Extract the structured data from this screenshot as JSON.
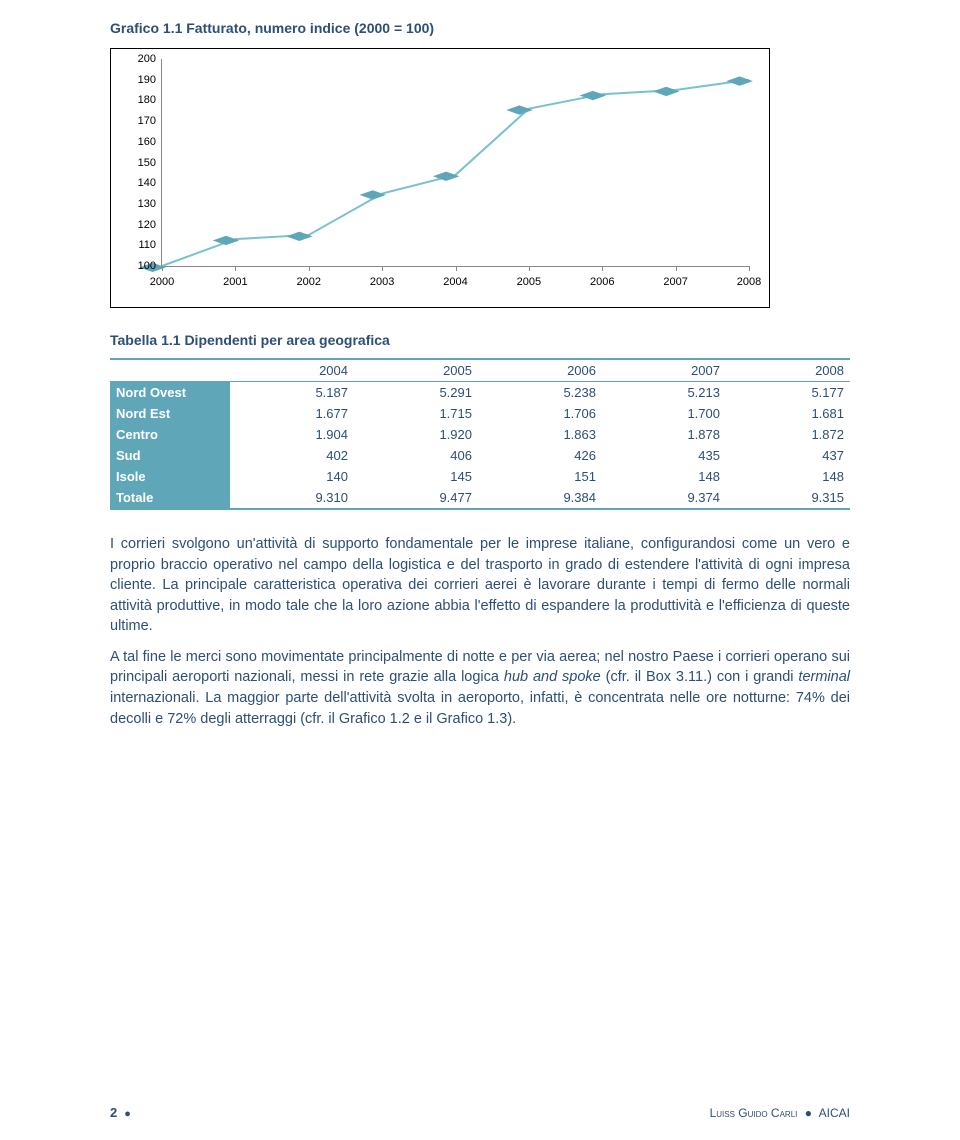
{
  "chart": {
    "title": "Grafico 1.1 Fatturato, numero indice (2000 = 100)",
    "type": "line",
    "x_labels": [
      "2000",
      "2001",
      "2002",
      "2003",
      "2004",
      "2005",
      "2006",
      "2007",
      "2008"
    ],
    "y_min": 100,
    "y_max": 200,
    "y_step": 10,
    "y_labels": [
      "100",
      "110",
      "120",
      "130",
      "140",
      "150",
      "160",
      "170",
      "180",
      "190",
      "200"
    ],
    "values": [
      100,
      113,
      115,
      135,
      144,
      176,
      183,
      185,
      190
    ],
    "line_color": "#79c1ce",
    "line_width": 4,
    "marker_color": "#5fa7b8",
    "marker_size": 8,
    "background_color": "#ffffff",
    "axis_color": "#888888",
    "text_color": "#000000"
  },
  "table": {
    "title": "Tabella 1.1 Dipendenti per area geografica",
    "columns": [
      "",
      "2004",
      "2005",
      "2006",
      "2007",
      "2008"
    ],
    "header_bg": "#5fa7b8",
    "header_text_color": "#ffffff",
    "cell_text_color": "#2d4f75",
    "border_color": "#5fa7b8",
    "rows": [
      {
        "label": "Nord Ovest",
        "cells": [
          "5.187",
          "5.291",
          "5.238",
          "5.213",
          "5.177"
        ]
      },
      {
        "label": "Nord Est",
        "cells": [
          "1.677",
          "1.715",
          "1.706",
          "1.700",
          "1.681"
        ]
      },
      {
        "label": "Centro",
        "cells": [
          "1.904",
          "1.920",
          "1.863",
          "1.878",
          "1.872"
        ]
      },
      {
        "label": "Sud",
        "cells": [
          "402",
          "406",
          "426",
          "435",
          "437"
        ]
      },
      {
        "label": "Isole",
        "cells": [
          "140",
          "145",
          "151",
          "148",
          "148"
        ]
      },
      {
        "label": "Totale",
        "cells": [
          "9.310",
          "9.477",
          "9.384",
          "9.374",
          "9.315"
        ]
      }
    ]
  },
  "paragraphs": {
    "p1": "I corrieri svolgono un'attività di supporto fondamentale per le imprese italiane, configurandosi come un vero e proprio braccio operativo nel campo della logistica e del trasporto in grado di estendere l'attività di ogni impresa cliente. La principale caratteristica operativa dei corrieri aerei è lavorare durante i tempi di fermo delle normali attività produttive, in modo tale che la loro azione abbia l'effetto di espandere la produttività e l'efficienza di queste ultime.",
    "p2_a": "A tal fine le merci sono movimentate principalmente di notte e per via aerea; nel nostro Paese i corrieri operano sui principali aeroporti nazionali, messi in rete grazie alla logica ",
    "p2_em1": "hub and spoke",
    "p2_b": " (cfr. il Box 3.11.) con i grandi ",
    "p2_em2": "terminal",
    "p2_c": " internazionali. La maggior parte dell'attività svolta in aeroporto, infatti, è concentrata nelle ore notturne: 74% dei decolli e 72% degli atterraggi (cfr. il Grafico 1.2 e il Grafico 1.3)."
  },
  "footer": {
    "page": "2",
    "credit1": "Luiss Guido Carli",
    "credit2": "AICAI"
  }
}
